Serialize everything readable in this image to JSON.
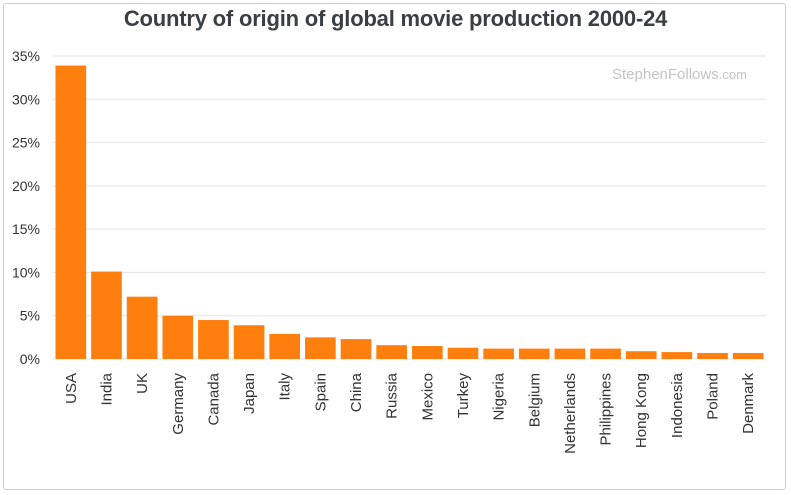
{
  "chart_data": {
    "type": "bar",
    "title": "Country of origin of global movie production 2000-24",
    "xlabel": "",
    "ylabel": "",
    "categories": [
      "USA",
      "India",
      "UK",
      "Germany",
      "Canada",
      "Japan",
      "Italy",
      "Spain",
      "China",
      "Russia",
      "Mexico",
      "Turkey",
      "Nigeria",
      "Belgium",
      "Netherlands",
      "Philippines",
      "Hong Kong",
      "Indonesia",
      "Poland",
      "Denmark"
    ],
    "values": [
      33.9,
      10.1,
      7.2,
      5.0,
      4.5,
      3.9,
      2.9,
      2.5,
      2.3,
      1.6,
      1.5,
      1.3,
      1.2,
      1.2,
      1.2,
      1.2,
      0.9,
      0.8,
      0.7,
      0.7
    ],
    "ylim": [
      0,
      35
    ],
    "yticks": [
      0,
      5,
      10,
      15,
      20,
      25,
      30,
      35
    ],
    "ytick_labels": [
      "0%",
      "5%",
      "10%",
      "15%",
      "20%",
      "25%",
      "30%",
      "35%"
    ],
    "grid": true,
    "bar_color": "#ff7f0e",
    "watermark": {
      "main": "StephenFollows",
      "suffix": ".com"
    }
  }
}
